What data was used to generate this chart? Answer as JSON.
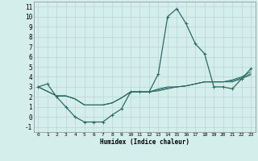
{
  "title": "",
  "xlabel": "Humidex (Indice chaleur)",
  "bg_color": "#d4eeec",
  "grid_color": "#c0d8d8",
  "line_color": "#2a6b65",
  "xlim": [
    -0.5,
    23.5
  ],
  "ylim": [
    -1.5,
    11.5
  ],
  "xticks": [
    0,
    1,
    2,
    3,
    4,
    5,
    6,
    7,
    8,
    9,
    10,
    11,
    12,
    13,
    14,
    15,
    16,
    17,
    18,
    19,
    20,
    21,
    22,
    23
  ],
  "yticks": [
    -1,
    0,
    1,
    2,
    3,
    4,
    5,
    6,
    7,
    8,
    9,
    10,
    11
  ],
  "line_main": {
    "x": [
      0,
      1,
      2,
      3,
      4,
      5,
      6,
      7,
      8,
      9,
      10,
      11,
      12,
      13,
      14,
      15,
      16,
      17,
      18,
      19,
      20,
      21,
      22,
      23
    ],
    "y": [
      3.0,
      3.3,
      2.0,
      1.0,
      0.0,
      -0.5,
      -0.5,
      -0.5,
      0.2,
      0.8,
      2.5,
      2.5,
      2.5,
      4.3,
      10.0,
      10.8,
      9.3,
      7.3,
      6.3,
      3.0,
      3.0,
      2.8,
      3.8,
      4.8
    ]
  },
  "line2": {
    "x": [
      0,
      2,
      3,
      4,
      5,
      6,
      7,
      8,
      9,
      10,
      11,
      12,
      13,
      14,
      15,
      16,
      17,
      18,
      19,
      20,
      21,
      22,
      23
    ],
    "y": [
      3.0,
      2.1,
      2.1,
      1.8,
      1.2,
      1.2,
      1.2,
      1.4,
      1.9,
      2.5,
      2.5,
      2.5,
      2.8,
      3.0,
      3.0,
      3.1,
      3.3,
      3.5,
      3.5,
      3.5,
      3.7,
      4.0,
      4.5
    ]
  },
  "line3": {
    "x": [
      0,
      2,
      3,
      4,
      5,
      6,
      7,
      8,
      9,
      10,
      11,
      12,
      13,
      14,
      15,
      16,
      17,
      18,
      19,
      20,
      21,
      22,
      23
    ],
    "y": [
      3.0,
      2.1,
      2.1,
      1.8,
      1.2,
      1.2,
      1.2,
      1.4,
      1.9,
      2.5,
      2.5,
      2.5,
      2.7,
      2.9,
      3.0,
      3.1,
      3.3,
      3.5,
      3.5,
      3.5,
      3.6,
      3.9,
      4.3
    ]
  },
  "line4": {
    "x": [
      0,
      2,
      3,
      4,
      5,
      6,
      7,
      8,
      9,
      10,
      11,
      12,
      13,
      14,
      15,
      16,
      17,
      18,
      19,
      20,
      21,
      22,
      23
    ],
    "y": [
      3.0,
      2.1,
      2.1,
      1.8,
      1.2,
      1.2,
      1.2,
      1.4,
      1.9,
      2.5,
      2.5,
      2.5,
      2.6,
      2.8,
      3.0,
      3.1,
      3.3,
      3.5,
      3.5,
      3.5,
      3.5,
      3.8,
      4.2
    ]
  }
}
